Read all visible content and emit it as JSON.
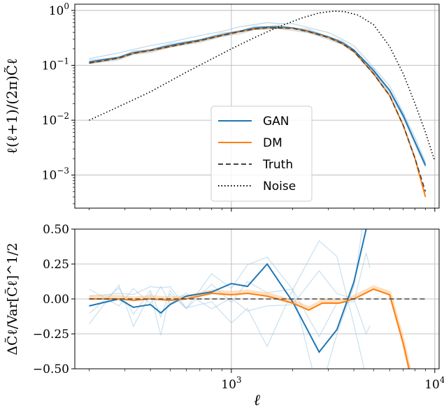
{
  "chart_data": [
    {
      "type": "line",
      "panel": "top",
      "ylabel": "ℓ(ℓ+1)/(2π)C̃ℓ",
      "xscale": "log",
      "yscale": "log",
      "xlim": [
        170,
        10500
      ],
      "ylim": [
        0.00025,
        1.3
      ],
      "grid": true,
      "legend_position": "center",
      "ytick_labels": [
        "10^0",
        "10^-1",
        "10^-2",
        "10^-3"
      ],
      "ytick_values": [
        1,
        0.1,
        0.01,
        0.001
      ],
      "series": [
        {
          "name": "GAN",
          "color": "#1f77b4",
          "style": "solid",
          "x": [
            200,
            280,
            330,
            400,
            500,
            700,
            900,
            1100,
            1300,
            1500,
            1700,
            2000,
            2400,
            3000,
            3500,
            4000,
            5000,
            6000,
            7000,
            8000,
            9000
          ],
          "y": [
            0.115,
            0.14,
            0.17,
            0.19,
            0.23,
            0.29,
            0.36,
            0.42,
            0.48,
            0.5,
            0.5,
            0.48,
            0.42,
            0.33,
            0.26,
            0.19,
            0.08,
            0.035,
            0.012,
            0.004,
            0.0015
          ]
        },
        {
          "name": "DM",
          "color": "#ff7f0e",
          "style": "solid",
          "x": [
            200,
            280,
            330,
            400,
            500,
            700,
            900,
            1100,
            1300,
            1500,
            1700,
            2000,
            2400,
            3000,
            3500,
            4000,
            5000,
            6000,
            7000,
            8000,
            9000
          ],
          "y": [
            0.11,
            0.135,
            0.165,
            0.185,
            0.22,
            0.28,
            0.35,
            0.41,
            0.46,
            0.48,
            0.48,
            0.47,
            0.41,
            0.32,
            0.25,
            0.18,
            0.07,
            0.028,
            0.008,
            0.002,
            0.0004
          ]
        },
        {
          "name": "Truth",
          "color": "#444444",
          "style": "dashed",
          "x": [
            200,
            280,
            330,
            400,
            500,
            700,
            900,
            1100,
            1300,
            1500,
            1700,
            2000,
            2400,
            3000,
            3500,
            4000,
            5000,
            6000,
            7000,
            8000,
            9000
          ],
          "y": [
            0.11,
            0.135,
            0.165,
            0.185,
            0.22,
            0.28,
            0.35,
            0.41,
            0.46,
            0.48,
            0.48,
            0.47,
            0.41,
            0.32,
            0.25,
            0.18,
            0.07,
            0.028,
            0.008,
            0.002,
            0.0005
          ]
        },
        {
          "name": "Noise",
          "color": "#000000",
          "style": "dotted",
          "x": [
            200,
            300,
            400,
            600,
            800,
            1000,
            1300,
            1700,
            2200,
            2700,
            3200,
            3600,
            4200,
            5000,
            6000,
            7000,
            8000,
            9000,
            10000
          ],
          "y": [
            0.01,
            0.02,
            0.033,
            0.075,
            0.13,
            0.2,
            0.32,
            0.5,
            0.72,
            0.9,
            0.97,
            0.95,
            0.82,
            0.55,
            0.22,
            0.07,
            0.02,
            0.006,
            0.0018
          ]
        }
      ]
    },
    {
      "type": "line",
      "panel": "bottom",
      "xlabel": "ℓ",
      "ylabel": "ΔC̃ℓ/Var[C̃ℓ]^1/2",
      "xscale": "log",
      "xlim": [
        170,
        10500
      ],
      "ylim": [
        -0.5,
        0.5
      ],
      "grid": true,
      "ytick_labels": [
        "0.50",
        "0.25",
        "0.00",
        "−0.25",
        "−0.50"
      ],
      "ytick_values": [
        0.5,
        0.25,
        0.0,
        -0.25,
        -0.5
      ],
      "xtick_labels": [
        "10^3",
        "10^4"
      ],
      "xtick_values": [
        1000,
        10000
      ],
      "series": [
        {
          "name": "GAN",
          "color": "#1f77b4",
          "style": "solid",
          "x": [
            200,
            280,
            330,
            400,
            450,
            500,
            600,
            800,
            1000,
            1200,
            1500,
            2000,
            2700,
            3300,
            4000,
            4600,
            4800
          ],
          "y": [
            -0.05,
            0.0,
            -0.06,
            -0.04,
            -0.1,
            -0.04,
            0.02,
            0.05,
            0.11,
            0.09,
            0.25,
            -0.02,
            -0.38,
            -0.22,
            0.12,
            0.5,
            0.6
          ]
        },
        {
          "name": "DM",
          "color": "#ff7f0e",
          "style": "solid",
          "x": [
            200,
            280,
            330,
            400,
            500,
            600,
            800,
            1000,
            1200,
            1500,
            2000,
            2400,
            2800,
            3400,
            4000,
            5000,
            6000,
            7000,
            7600
          ],
          "y": [
            0.0,
            0.0,
            -0.01,
            0.0,
            -0.01,
            0.0,
            0.04,
            0.03,
            0.04,
            0.02,
            -0.03,
            -0.08,
            -0.03,
            -0.03,
            0.0,
            0.07,
            0.03,
            -0.32,
            -0.55
          ]
        },
        {
          "name": "Truth",
          "color": "#444444",
          "style": "dashed",
          "x": [
            200,
            9000
          ],
          "y": [
            0.0,
            0.0
          ]
        }
      ]
    }
  ]
}
